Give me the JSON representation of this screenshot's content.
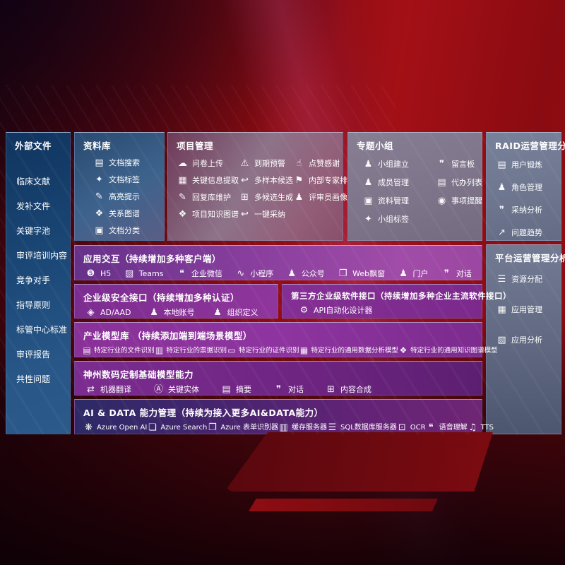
{
  "colors": {
    "screen_red": "#a31016",
    "sidebar_blue": "#1b4877",
    "library_blue": "#3d638d",
    "row_purple": "#8a3398",
    "aidata_indigo": "#2c2a66",
    "text": "#ffffff"
  },
  "sidebar": {
    "title": "外部文件",
    "items": [
      "临床文献",
      "发补文件",
      "关键字池",
      "审评培训内容",
      "竞争对手",
      "指导原则",
      "标管中心标准",
      "审评报告",
      "共性问题"
    ]
  },
  "panels": {
    "library": {
      "title": "资料库",
      "items": [
        {
          "icon": "doc-search-icon",
          "label": "文档搜索"
        },
        {
          "icon": "tag-icon",
          "label": "文档标签"
        },
        {
          "icon": "highlight-pencil-icon",
          "label": "高亮提示"
        },
        {
          "icon": "relation-graph-icon",
          "label": "关系图谱"
        },
        {
          "icon": "doc-classify-icon",
          "label": "文档分类"
        }
      ]
    },
    "project": {
      "title": "项目管理",
      "items": [
        {
          "icon": "cloud-upload-icon",
          "label": "问卷上传"
        },
        {
          "icon": "alarm-icon",
          "label": "到期预警"
        },
        {
          "icon": "thumbs-up-icon",
          "label": "点赞感谢"
        },
        {
          "icon": "extract-icon",
          "label": "关键信息提取"
        },
        {
          "icon": "reply-icon",
          "label": "多样本候选"
        },
        {
          "icon": "ranking-icon",
          "label": "内部专家排名"
        },
        {
          "icon": "edit-icon",
          "label": "回复库维护"
        },
        {
          "icon": "generate-grid-icon",
          "label": "多候选生成"
        },
        {
          "icon": "person-icon",
          "label": "评审员画像"
        },
        {
          "icon": "knowledge-graph-icon",
          "label": "项目知识图谱"
        },
        {
          "icon": "adopt-arrow-icon",
          "label": "一键采纳"
        }
      ]
    },
    "groups": {
      "title": "专题小组",
      "items": [
        {
          "icon": "group-people-icon",
          "label": "小组建立"
        },
        {
          "icon": "bbs-board-icon",
          "label": "留言板"
        },
        {
          "icon": "member-icon",
          "label": "成员管理"
        },
        {
          "icon": "todo-list-icon",
          "label": "代办列表"
        },
        {
          "icon": "material-book-icon",
          "label": "资料管理"
        },
        {
          "icon": "bell-icon",
          "label": "事项提醒"
        },
        {
          "icon": "tag-icon",
          "label": "小组标签"
        }
      ]
    },
    "raid": {
      "title": "RAID运营管理分析",
      "items": [
        {
          "icon": "user-badge-icon",
          "label": "用户锻炼"
        },
        {
          "icon": "role-people-icon",
          "label": "角色管理"
        },
        {
          "icon": "chat-analysis-icon",
          "label": "采纳分析"
        },
        {
          "icon": "trend-chart-icon",
          "label": "问题趋势"
        }
      ]
    },
    "platform": {
      "title": "平台运营管理分析",
      "items": [
        {
          "icon": "allocation-list-icon",
          "label": "资源分配"
        },
        {
          "icon": "app-grid-icon",
          "label": "应用管理"
        },
        {
          "icon": "app-analysis-icon",
          "label": "应用分析"
        }
      ]
    }
  },
  "rows": {
    "interaction": {
      "title": "应用交互（持续增加多种客户端）",
      "items": [
        {
          "icon": "h5-icon",
          "label": "H5"
        },
        {
          "icon": "teams-icon",
          "label": "Teams"
        },
        {
          "icon": "wechat-work-icon",
          "label": "企业微信"
        },
        {
          "icon": "miniprogram-icon",
          "label": "小程序"
        },
        {
          "icon": "official-account-icon",
          "label": "公众号"
        },
        {
          "icon": "web-window-icon",
          "label": "Web飘窗"
        },
        {
          "icon": "portal-icon",
          "label": "门户"
        },
        {
          "icon": "chat-icon",
          "label": "对话"
        }
      ]
    },
    "security": {
      "title": "企业级安全接口（持续增加多种认证）",
      "items": [
        {
          "icon": "ad-diamond-icon",
          "label": "AD/AAD"
        },
        {
          "icon": "local-account-icon",
          "label": "本地账号"
        },
        {
          "icon": "org-people-icon",
          "label": "组织定义"
        }
      ]
    },
    "third_party": {
      "title": "第三方企业级软件接口（持续增加多种企业主流软件接口）",
      "items": [
        {
          "icon": "api-gear-icon",
          "label": "API自动化设计器"
        }
      ]
    },
    "industry_models": {
      "title": "产业模型库 （持续添加端到端场景模型）",
      "items": [
        {
          "icon": "file-recognize-icon",
          "label": "特定行业的文件识别"
        },
        {
          "icon": "receipt-recognize-icon",
          "label": "特定行业的票据识别"
        },
        {
          "icon": "idcard-recognize-icon",
          "label": "特定行业的证件识别"
        },
        {
          "icon": "data-model-icon",
          "label": "特定行业的通用数据分析模型"
        },
        {
          "icon": "kg-model-icon",
          "label": "特定行业的通用知识图谱模型"
        }
      ]
    },
    "base_models": {
      "title": "神州数码定制基础模型能力",
      "items": [
        {
          "icon": "translate-icon",
          "label": "机器翻译"
        },
        {
          "icon": "entity-icon",
          "label": "关键实体"
        },
        {
          "icon": "summary-doc-icon",
          "label": "摘要"
        },
        {
          "icon": "dialog-icon",
          "label": "对话"
        },
        {
          "icon": "compose-icon",
          "label": "内容合成"
        }
      ]
    },
    "ai_data": {
      "title": "AI & DATA 能力管理（持续为接入更多AI&DATA能力）",
      "items": [
        {
          "icon": "openai-icon",
          "label": "Azure Open AI"
        },
        {
          "icon": "azure-search-icon",
          "label": "Azure Search"
        },
        {
          "icon": "form-recognizer-icon",
          "label": "Azure 表单识别器"
        },
        {
          "icon": "cache-server-icon",
          "label": "缓存服务器"
        },
        {
          "icon": "sql-db-icon",
          "label": "SQL数据库服务器"
        },
        {
          "icon": "ocr-icon",
          "label": "OCR"
        },
        {
          "icon": "speech-icon",
          "label": "语音理解"
        },
        {
          "icon": "tts-icon",
          "label": "TTS"
        }
      ]
    }
  },
  "icon_glyphs": {
    "doc-search-icon": "▤",
    "tag-icon": "✦",
    "highlight-pencil-icon": "✎",
    "relation-graph-icon": "❖",
    "doc-classify-icon": "▣",
    "cloud-upload-icon": "☁",
    "alarm-icon": "⚠",
    "thumbs-up-icon": "☝",
    "extract-icon": "▦",
    "reply-icon": "↩",
    "ranking-icon": "⚑",
    "edit-icon": "✎",
    "generate-grid-icon": "⊞",
    "person-icon": "♟",
    "knowledge-graph-icon": "❖",
    "adopt-arrow-icon": "↩",
    "group-people-icon": "♟",
    "bbs-board-icon": "❞",
    "member-icon": "♟",
    "todo-list-icon": "▤",
    "material-book-icon": "▣",
    "bell-icon": "◉",
    "user-badge-icon": "▤",
    "role-people-icon": "♟",
    "chat-analysis-icon": "❞",
    "trend-chart-icon": "↗",
    "allocation-list-icon": "☰",
    "app-grid-icon": "▦",
    "app-analysis-icon": "▧",
    "h5-icon": "❺",
    "teams-icon": "▨",
    "wechat-work-icon": "❝",
    "miniprogram-icon": "∿",
    "official-account-icon": "♟",
    "web-window-icon": "❐",
    "portal-icon": "♟",
    "chat-icon": "❞",
    "ad-diamond-icon": "◈",
    "local-account-icon": "♟",
    "org-people-icon": "♟",
    "api-gear-icon": "⚙",
    "file-recognize-icon": "▤",
    "receipt-recognize-icon": "▥",
    "idcard-recognize-icon": "▭",
    "data-model-icon": "▦",
    "kg-model-icon": "❖",
    "translate-icon": "⇄",
    "entity-icon": "Ⓐ",
    "summary-doc-icon": "▤",
    "dialog-icon": "❞",
    "compose-icon": "⊞",
    "openai-icon": "❋",
    "azure-search-icon": "❏",
    "form-recognizer-icon": "❐",
    "cache-server-icon": "▥",
    "sql-db-icon": "☰",
    "ocr-icon": "⊡",
    "speech-icon": "❝",
    "tts-icon": "♫"
  }
}
